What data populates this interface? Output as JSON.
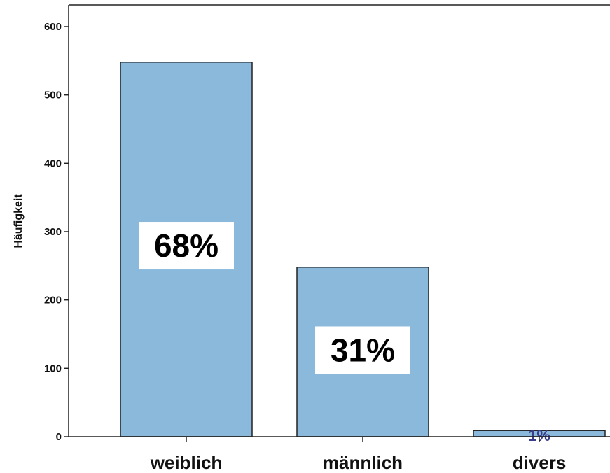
{
  "chart_data": {
    "type": "bar",
    "categories": [
      "weiblich",
      "männlich",
      "divers"
    ],
    "values": [
      548,
      248,
      9
    ],
    "data_labels": [
      "68%",
      "31%",
      "1%"
    ],
    "title": "",
    "xlabel": "",
    "ylabel": "Häufigkeit",
    "ylim": [
      0,
      600
    ],
    "yticks": [
      0,
      100,
      200,
      300,
      400,
      500,
      600
    ],
    "ytick_labels": [
      "0",
      "100",
      "200",
      "300",
      "400",
      "500",
      "600"
    ],
    "grid": false,
    "legend": "none",
    "colors": {
      "bar_fill": "#8bb9dc",
      "bar_stroke": "#222222",
      "label_box": "#ffffff",
      "small_label": "#3a3d8c",
      "axis": "#222222"
    }
  }
}
